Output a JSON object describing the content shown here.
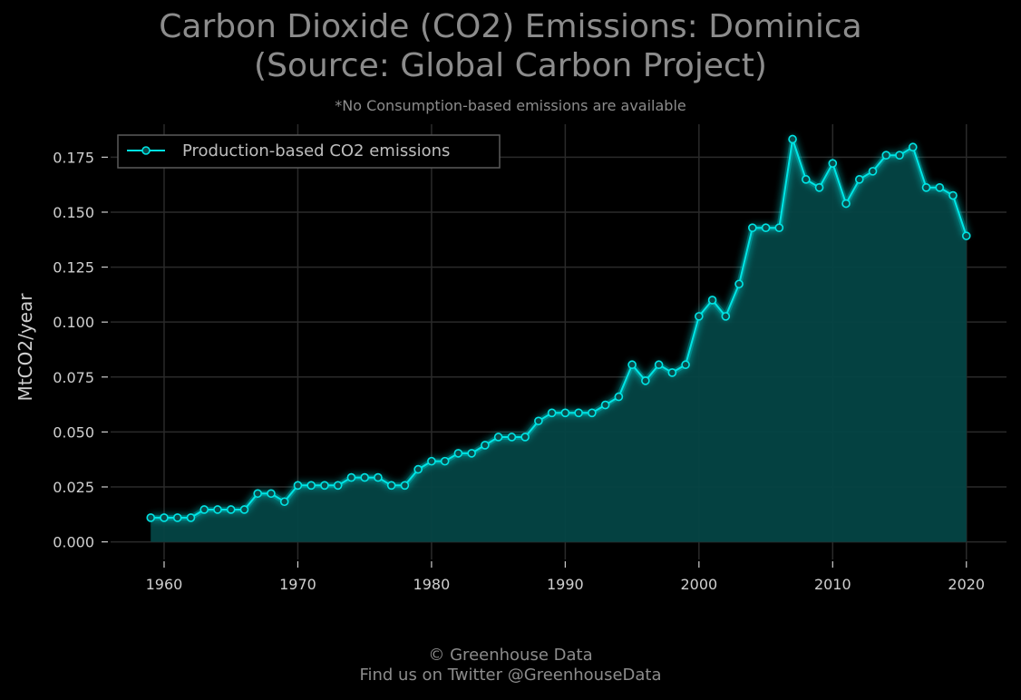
{
  "chart_data": {
    "type": "area",
    "title_line1": "Carbon Dioxide (CO2) Emissions: Dominica",
    "title_line2": "(Source: Global Carbon Project)",
    "subtitle": "*No Consumption-based emissions are available",
    "ylabel": "MtCO2/year",
    "xlabel": "",
    "xlim": [
      1956,
      2023
    ],
    "ylim": [
      -0.008,
      0.19
    ],
    "x_ticks": [
      1960,
      1970,
      1980,
      1990,
      2000,
      2010,
      2020
    ],
    "y_ticks": [
      "0.000",
      "0.025",
      "0.050",
      "0.075",
      "0.100",
      "0.125",
      "0.150",
      "0.175"
    ],
    "grid": true,
    "legend_position": "top-left",
    "colors": {
      "line": "#00e5e5",
      "fill": "#044444",
      "grid": "#2a2a2a",
      "text": "#cfcfcf"
    },
    "series": [
      {
        "name": "Production-based CO2 emissions",
        "x": [
          1959,
          1960,
          1961,
          1962,
          1963,
          1964,
          1965,
          1966,
          1967,
          1968,
          1969,
          1970,
          1971,
          1972,
          1973,
          1974,
          1975,
          1976,
          1977,
          1978,
          1979,
          1980,
          1981,
          1982,
          1983,
          1984,
          1985,
          1986,
          1987,
          1988,
          1989,
          1990,
          1991,
          1992,
          1993,
          1994,
          1995,
          1996,
          1997,
          1998,
          1999,
          2000,
          2001,
          2002,
          2003,
          2004,
          2005,
          2006,
          2007,
          2008,
          2009,
          2010,
          2011,
          2012,
          2013,
          2014,
          2015,
          2016,
          2017,
          2018,
          2019,
          2020
        ],
        "values": [
          0.011,
          0.011,
          0.011,
          0.011,
          0.0147,
          0.0147,
          0.0147,
          0.0147,
          0.022,
          0.022,
          0.0183,
          0.0257,
          0.0257,
          0.0257,
          0.0257,
          0.0293,
          0.0293,
          0.0293,
          0.0257,
          0.0257,
          0.033,
          0.0367,
          0.0367,
          0.0403,
          0.0403,
          0.044,
          0.0477,
          0.0477,
          0.0477,
          0.055,
          0.0587,
          0.0587,
          0.0587,
          0.0587,
          0.0623,
          0.066,
          0.0806,
          0.0733,
          0.0806,
          0.077,
          0.0806,
          0.1026,
          0.11,
          0.1026,
          0.1173,
          0.1429,
          0.1429,
          0.1429,
          0.1832,
          0.1649,
          0.1612,
          0.1722,
          0.1539,
          0.1649,
          0.1686,
          0.1759,
          0.1759,
          0.1796,
          0.1612,
          0.1612,
          0.1576,
          0.1392
        ]
      }
    ]
  },
  "footer": {
    "line1": "© Greenhouse Data",
    "line2": "Find us on Twitter @GreenhouseData"
  }
}
